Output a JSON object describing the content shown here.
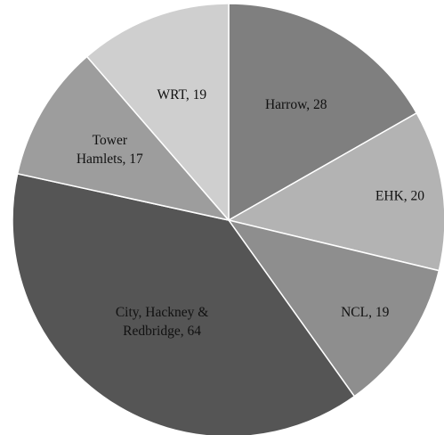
{
  "chart_data": {
    "type": "pie",
    "title": "",
    "slices": [
      {
        "label": "Harrow, 28",
        "lines": [
          "Harrow, 28"
        ],
        "value": 28,
        "color": "#7f7f7f"
      },
      {
        "label": "EHK, 20",
        "lines": [
          "EHK, 20"
        ],
        "value": 20,
        "color": "#b3b3b3"
      },
      {
        "label": "NCL, 19",
        "lines": [
          "NCL, 19"
        ],
        "value": 19,
        "color": "#8e8e8e"
      },
      {
        "label": "City, Hackney & Redbridge, 64",
        "lines": [
          "City, Hackney &",
          "Redbridge, 64"
        ],
        "value": 64,
        "color": "#555555"
      },
      {
        "label": "Tower Hamlets, 17",
        "lines": [
          "Tower",
          "Hamlets, 17"
        ],
        "value": 17,
        "color": "#9d9d9d"
      },
      {
        "label": "WRT, 19",
        "lines": [
          "WRT, 19"
        ],
        "value": 19,
        "color": "#cfcfcf"
      }
    ],
    "start_angle": "12 o'clock",
    "direction": "clockwise",
    "legend": "none"
  }
}
